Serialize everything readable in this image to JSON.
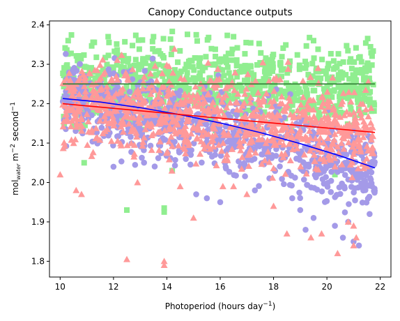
{
  "chart_data": {
    "type": "scatter",
    "title": "Canopy Conductance outputs",
    "xlabel": {
      "main": "Photoperiod (hours day",
      "sup": "−1",
      "close": ")"
    },
    "ylabel": {
      "prefix": "mol",
      "sub": "water",
      "mid": " m",
      "sup1": "−2",
      "mid2": " second",
      "sup2": "−1"
    },
    "xlim": [
      9.6,
      22.4
    ],
    "ylim": [
      1.76,
      2.41
    ],
    "xticks": [
      10,
      12,
      14,
      16,
      18,
      20,
      22
    ],
    "xtick_labels": [
      "10",
      "12",
      "14",
      "16",
      "18",
      "20",
      "22"
    ],
    "yticks": [
      1.8,
      1.9,
      2.0,
      2.1,
      2.2,
      2.3,
      2.4
    ],
    "ytick_labels": [
      "1.8",
      "1.9",
      "2.0",
      "2.1",
      "2.2",
      "2.3",
      "2.4"
    ],
    "grid": false,
    "x_range": [
      10.1,
      21.8
    ],
    "series": [
      {
        "marker": "square",
        "color": "#90EE90",
        "center": 2.25,
        "spread": 0.05,
        "outliers": [
          [
            10.9,
            2.05
          ],
          [
            12.5,
            1.93
          ],
          [
            13.9,
            1.935
          ],
          [
            13.9,
            1.925
          ],
          [
            14.2,
            2.03
          ],
          [
            20.3,
            2.02
          ],
          [
            21.4,
            2.0
          ],
          [
            11.8,
            2.37
          ],
          [
            13.5,
            2.37
          ],
          [
            16.5,
            2.37
          ],
          [
            19.5,
            2.36
          ],
          [
            10.3,
            2.36
          ]
        ]
      },
      {
        "marker": "circle",
        "color": "#A49AE8",
        "trend": [
          2.213,
          -0.0125,
          -0.00029
        ],
        "spread": 0.05,
        "outliers": [
          [
            12.0,
            2.04
          ],
          [
            15.1,
            1.97
          ],
          [
            15.5,
            1.96
          ],
          [
            16.0,
            1.95
          ],
          [
            17.3,
            1.98
          ],
          [
            18.7,
            1.96
          ],
          [
            19.0,
            1.93
          ],
          [
            19.5,
            1.91
          ],
          [
            20.3,
            1.89
          ],
          [
            20.6,
            1.86
          ],
          [
            21.0,
            1.85
          ],
          [
            21.2,
            1.84
          ],
          [
            21.6,
            1.92
          ],
          [
            20.8,
            1.9
          ],
          [
            19.2,
            1.88
          ]
        ]
      },
      {
        "marker": "triangle",
        "color": "#FF9999",
        "trend": [
          2.2,
          -0.0062,
          0.0
        ],
        "spread": 0.055,
        "outliers": [
          [
            10.0,
            2.02
          ],
          [
            10.6,
            1.98
          ],
          [
            10.8,
            1.97
          ],
          [
            12.5,
            1.805
          ],
          [
            13.9,
            1.8
          ],
          [
            13.9,
            1.79
          ],
          [
            14.5,
            1.99
          ],
          [
            15.0,
            1.91
          ],
          [
            16.1,
            1.99
          ],
          [
            17.0,
            1.97
          ],
          [
            18.0,
            1.94
          ],
          [
            18.5,
            1.87
          ],
          [
            19.4,
            1.86
          ],
          [
            19.8,
            1.87
          ],
          [
            20.4,
            1.82
          ],
          [
            21.0,
            1.89
          ],
          [
            21.1,
            1.86
          ],
          [
            21.0,
            1.84
          ],
          [
            20.8,
            1.9
          ],
          [
            16.5,
            1.99
          ],
          [
            12.9,
            2.0
          ]
        ]
      }
    ],
    "fit_lines": [
      {
        "color": "#2E7D32",
        "x": [
          10.1,
          21.8
        ],
        "y": [
          2.25,
          2.25
        ]
      },
      {
        "color": "#0000FF",
        "x": [
          10.1,
          11.5,
          13,
          14.5,
          16,
          17.5,
          19,
          20.5,
          21.8
        ],
        "y": [
          2.213,
          2.2042,
          2.1899,
          2.1721,
          2.1511,
          2.1266,
          2.0986,
          2.0674,
          2.0369
        ]
      },
      {
        "color": "#FF0000",
        "x": [
          10.1,
          21.8
        ],
        "y": [
          2.2,
          2.127
        ]
      }
    ]
  }
}
